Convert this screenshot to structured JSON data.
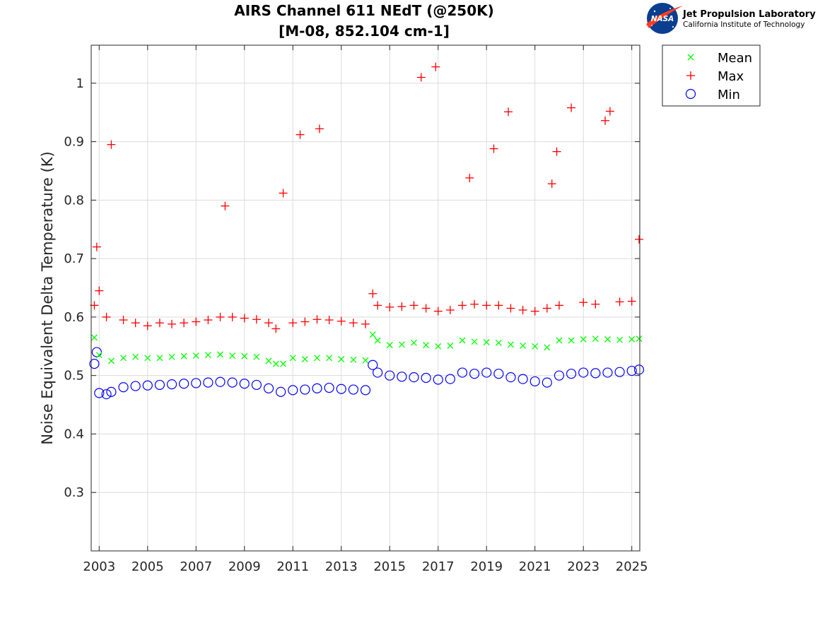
{
  "logo": {
    "org_line1": "Jet Propulsion Laboratory",
    "org_line2": "California Institute of Technology",
    "badge_text": "NASA"
  },
  "colors": {
    "mean": "#00ff00",
    "max": "#ff0000",
    "min": "#0000ff",
    "grid": "#dcdcdc",
    "axis": "#262626"
  },
  "chart_data": {
    "type": "scatter",
    "title": "AIRS Channel 611 NEdT (@250K)",
    "subtitle": "[M-08, 852.104 cm-1]",
    "xlabel": "",
    "ylabel": "Noise Equivalent Delta Temperature (K)",
    "xlim": [
      2002.67,
      2025.33
    ],
    "ylim": [
      0.2,
      1.065
    ],
    "x_ticks": [
      2003,
      2005,
      2007,
      2009,
      2011,
      2013,
      2015,
      2017,
      2019,
      2021,
      2023,
      2025
    ],
    "x_tick_labels": [
      "2003",
      "2005",
      "2007",
      "2009",
      "2011",
      "2013",
      "2015",
      "2017",
      "2019",
      "2021",
      "2023",
      "2025"
    ],
    "y_ticks": [
      0.3,
      0.4,
      0.5,
      0.6,
      0.7,
      0.8,
      0.9,
      1.0
    ],
    "y_tick_labels": [
      "0.3",
      "0.4",
      "0.5",
      "0.6",
      "0.7",
      "0.8",
      "0.9",
      "1"
    ],
    "grid": true,
    "legend_position": "outside top-right",
    "series": [
      {
        "name": "Mean",
        "marker": "x",
        "x": [
          2002.8,
          2003.0,
          2003.5,
          2004.0,
          2004.5,
          2005.0,
          2005.5,
          2006.0,
          2006.5,
          2007.0,
          2007.5,
          2008.0,
          2008.5,
          2009.0,
          2009.5,
          2010.0,
          2010.3,
          2010.6,
          2011.0,
          2011.5,
          2012.0,
          2012.5,
          2013.0,
          2013.5,
          2014.0,
          2014.3,
          2014.5,
          2015.0,
          2015.5,
          2016.0,
          2016.5,
          2017.0,
          2017.5,
          2018.0,
          2018.5,
          2019.0,
          2019.5,
          2020.0,
          2020.5,
          2021.0,
          2021.5,
          2022.0,
          2022.5,
          2023.0,
          2023.5,
          2024.0,
          2024.5,
          2025.0,
          2025.3
        ],
        "y": [
          0.565,
          0.535,
          0.525,
          0.53,
          0.532,
          0.53,
          0.53,
          0.532,
          0.533,
          0.534,
          0.535,
          0.536,
          0.534,
          0.533,
          0.532,
          0.525,
          0.52,
          0.52,
          0.53,
          0.528,
          0.53,
          0.53,
          0.528,
          0.527,
          0.526,
          0.57,
          0.56,
          0.552,
          0.553,
          0.556,
          0.552,
          0.55,
          0.551,
          0.56,
          0.558,
          0.557,
          0.556,
          0.553,
          0.551,
          0.55,
          0.548,
          0.56,
          0.56,
          0.562,
          0.563,
          0.562,
          0.561,
          0.562,
          0.563
        ]
      },
      {
        "name": "Max",
        "marker": "+",
        "x": [
          2002.8,
          2002.9,
          2003.0,
          2003.3,
          2003.5,
          2004.0,
          2004.5,
          2005.0,
          2005.5,
          2006.0,
          2006.5,
          2007.0,
          2007.5,
          2008.0,
          2008.2,
          2008.5,
          2009.0,
          2009.5,
          2010.0,
          2010.3,
          2010.6,
          2011.0,
          2011.3,
          2011.5,
          2012.0,
          2012.1,
          2012.5,
          2013.0,
          2013.5,
          2014.0,
          2014.3,
          2014.5,
          2015.0,
          2015.5,
          2016.0,
          2016.3,
          2016.5,
          2016.9,
          2017.0,
          2017.5,
          2018.0,
          2018.3,
          2018.5,
          2019.0,
          2019.3,
          2019.5,
          2019.9,
          2020.0,
          2020.5,
          2021.0,
          2021.5,
          2021.7,
          2021.9,
          2022.0,
          2022.5,
          2023.0,
          2023.5,
          2023.9,
          2024.1,
          2024.5,
          2025.0,
          2025.3
        ],
        "y": [
          0.62,
          0.72,
          0.645,
          0.6,
          0.895,
          0.595,
          0.59,
          0.585,
          0.59,
          0.588,
          0.59,
          0.592,
          0.595,
          0.6,
          0.79,
          0.6,
          0.598,
          0.596,
          0.59,
          0.58,
          0.812,
          0.59,
          0.912,
          0.592,
          0.596,
          0.922,
          0.595,
          0.593,
          0.59,
          0.588,
          0.64,
          0.62,
          0.617,
          0.618,
          0.62,
          1.01,
          0.615,
          1.028,
          0.61,
          0.612,
          0.62,
          0.838,
          0.622,
          0.62,
          0.888,
          0.62,
          0.951,
          0.615,
          0.612,
          0.61,
          0.615,
          0.828,
          0.883,
          0.62,
          0.958,
          0.625,
          0.622,
          0.936,
          0.952,
          0.626,
          0.627,
          0.733
        ]
      },
      {
        "name": "Min",
        "marker": "o",
        "x": [
          2002.8,
          2002.9,
          2003.0,
          2003.3,
          2003.5,
          2004.0,
          2004.5,
          2005.0,
          2005.5,
          2006.0,
          2006.5,
          2007.0,
          2007.5,
          2008.0,
          2008.5,
          2009.0,
          2009.5,
          2010.0,
          2010.5,
          2011.0,
          2011.5,
          2012.0,
          2012.5,
          2013.0,
          2013.5,
          2014.0,
          2014.3,
          2014.5,
          2015.0,
          2015.5,
          2016.0,
          2016.5,
          2017.0,
          2017.5,
          2018.0,
          2018.5,
          2019.0,
          2019.5,
          2020.0,
          2020.5,
          2021.0,
          2021.5,
          2022.0,
          2022.5,
          2023.0,
          2023.5,
          2024.0,
          2024.5,
          2025.0,
          2025.3
        ],
        "y": [
          0.52,
          0.54,
          0.47,
          0.468,
          0.472,
          0.48,
          0.482,
          0.483,
          0.484,
          0.485,
          0.486,
          0.487,
          0.488,
          0.489,
          0.488,
          0.486,
          0.484,
          0.478,
          0.472,
          0.475,
          0.476,
          0.478,
          0.479,
          0.477,
          0.476,
          0.475,
          0.518,
          0.505,
          0.5,
          0.498,
          0.497,
          0.496,
          0.493,
          0.494,
          0.505,
          0.503,
          0.505,
          0.503,
          0.497,
          0.494,
          0.49,
          0.488,
          0.5,
          0.503,
          0.505,
          0.504,
          0.505,
          0.506,
          0.508,
          0.51
        ]
      }
    ]
  }
}
